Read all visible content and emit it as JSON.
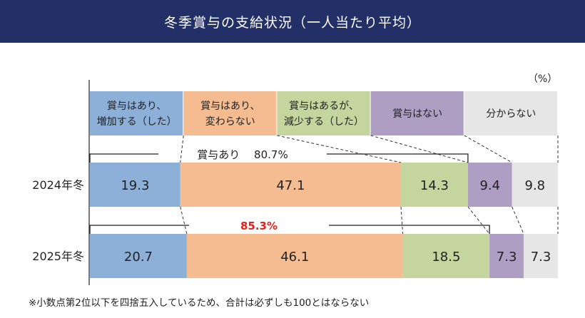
{
  "title": "冬季賞与の支給状況（一人当たり平均）",
  "unit": "（%）",
  "note": "※小数点第2位以下を四捨五入しているため、合計は必ずしも100とはならない",
  "chart_data": {
    "type": "bar",
    "orientation": "horizontal-stacked",
    "categories": [
      "2024年冬",
      "2025年冬"
    ],
    "series": [
      {
        "name": "賞与はあり、\n増加する（した）",
        "color": "#8db0d9",
        "values": [
          19.3,
          20.7
        ]
      },
      {
        "name": "賞与はあり、\n変わらない",
        "color": "#f4bc90",
        "values": [
          47.1,
          46.1
        ]
      },
      {
        "name": "賞与はあるが、\n減少する（した）",
        "color": "#c4d69d",
        "values": [
          14.3,
          18.5
        ]
      },
      {
        "name": "賞与はない",
        "color": "#ae9ec4",
        "values": [
          9.4,
          7.3
        ]
      },
      {
        "name": "分からない",
        "color": "#e6e6e6",
        "values": [
          9.8,
          7.3
        ]
      }
    ],
    "annotations": [
      {
        "category": "2024年冬",
        "label": "賞与あり",
        "value": "80.7%",
        "color": "#222222"
      },
      {
        "category": "2025年冬",
        "label": "",
        "value": "85.3%",
        "color": "#e8201a"
      }
    ]
  }
}
